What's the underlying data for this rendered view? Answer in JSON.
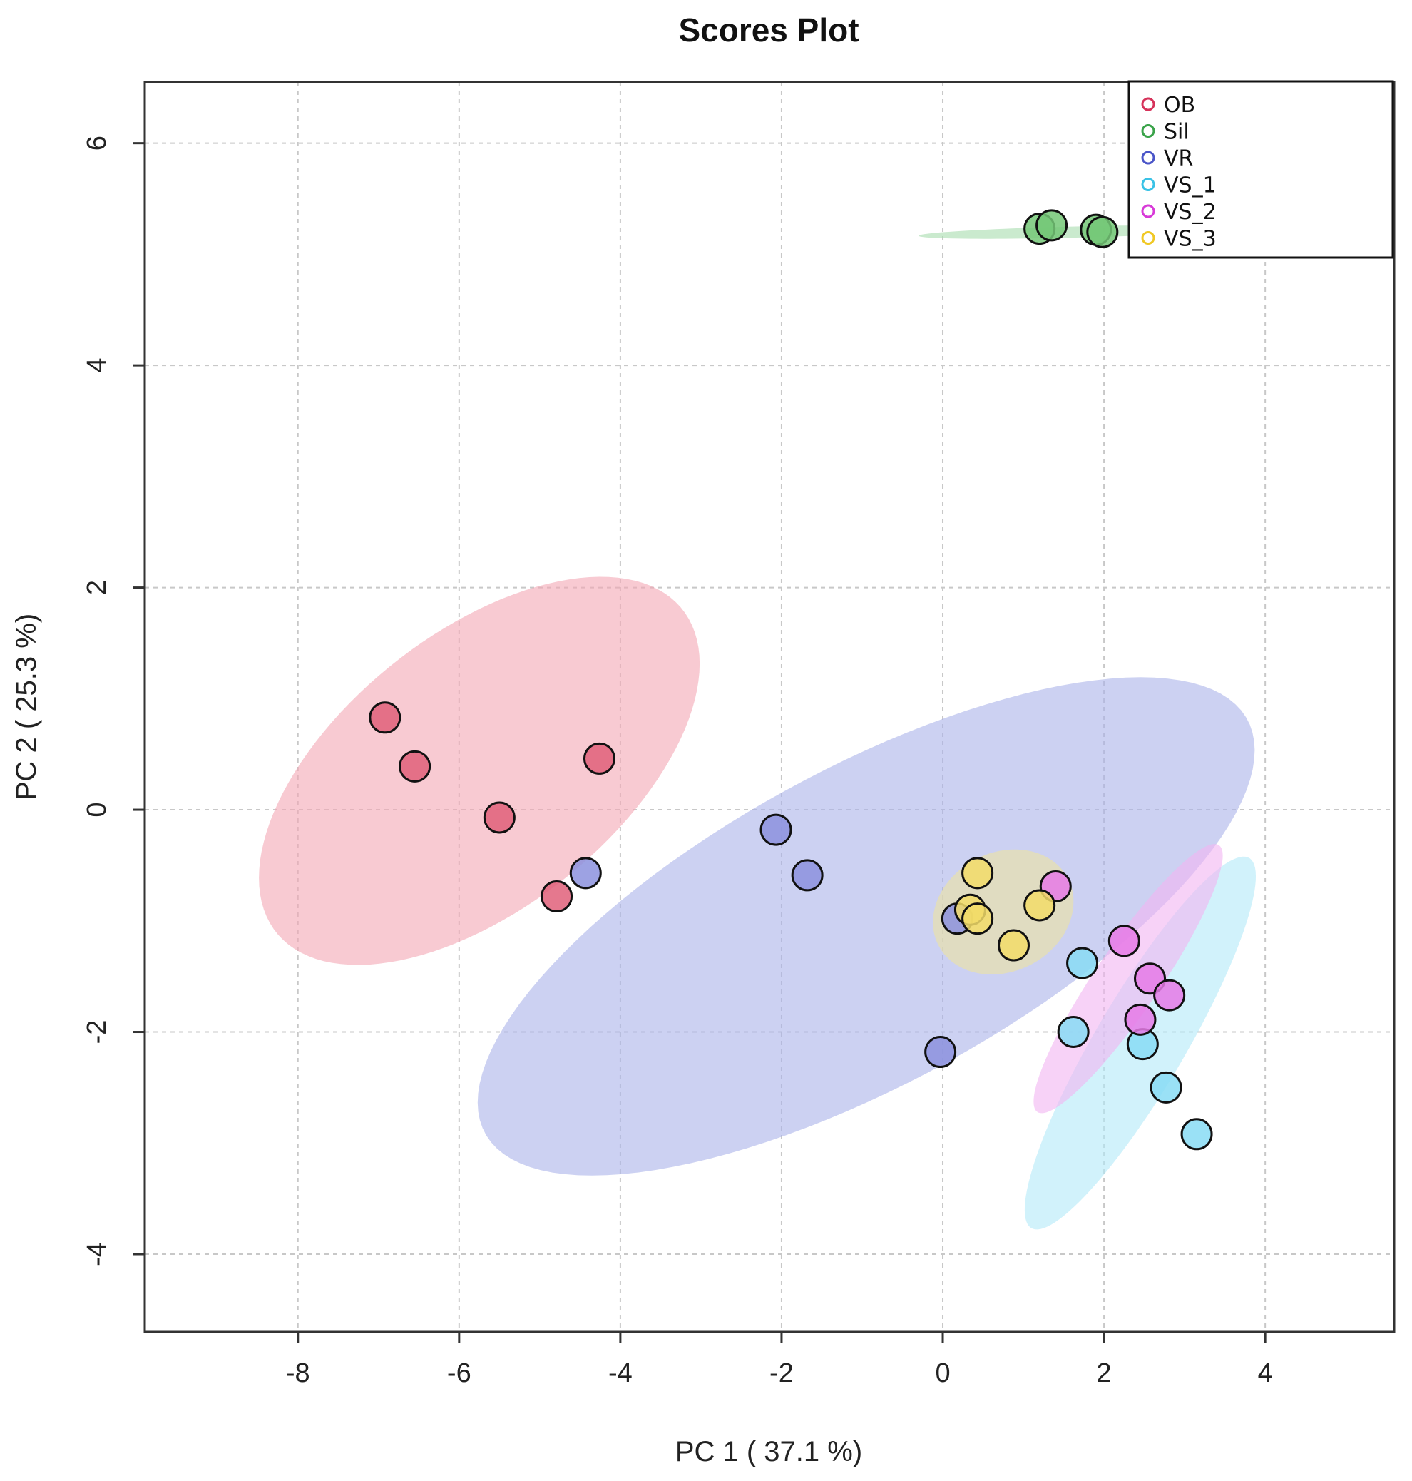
{
  "chart_data": {
    "type": "scatter",
    "title": "Scores Plot",
    "xlabel": "PC 1 ( 37.1 %)",
    "ylabel": "PC 2 ( 25.3 %)",
    "xlim": [
      -9.9,
      5.6
    ],
    "ylim": [
      -4.7,
      6.55
    ],
    "xticks": [
      -8,
      -6,
      -4,
      -2,
      0,
      2,
      4
    ],
    "yticks": [
      -4,
      -2,
      0,
      2,
      4,
      6
    ],
    "grid": true,
    "legend_position": "top-right",
    "series": [
      {
        "name": "OB",
        "legend_color": "#d6325a",
        "fill": "#e0607a",
        "ellipse_fill": "#f4a6b4",
        "ellipse": {
          "cx": -5.75,
          "cy": 0.35,
          "rx": 2.95,
          "ry": 1.35,
          "angle": 25
        },
        "points": [
          [
            -6.92,
            0.83
          ],
          [
            -6.55,
            0.39
          ],
          [
            -5.5,
            -0.07
          ],
          [
            -4.79,
            -0.78
          ],
          [
            -4.26,
            0.46
          ]
        ]
      },
      {
        "name": "Sil",
        "legend_color": "#3aa34a",
        "fill": "#74c877",
        "ellipse_fill": "#a6dcae",
        "ellipse": {
          "cx": 1.65,
          "cy": 5.2,
          "rx": 1.95,
          "ry": 0.05,
          "angle": 1
        },
        "points": [
          [
            1.2,
            5.23
          ],
          [
            1.35,
            5.26
          ],
          [
            1.9,
            5.22
          ],
          [
            1.98,
            5.2
          ]
        ]
      },
      {
        "name": "VR",
        "legend_color": "#4a55c8",
        "fill": "#8c92de",
        "ellipse_fill": "#aab2ea",
        "ellipse": {
          "cx": -0.95,
          "cy": -1.05,
          "rx": 5.1,
          "ry": 1.5,
          "angle": 20
        },
        "points": [
          [
            -4.43,
            -0.57
          ],
          [
            -2.07,
            -0.18
          ],
          [
            -1.68,
            -0.59
          ],
          [
            -0.03,
            -2.18
          ],
          [
            0.18,
            -0.98
          ]
        ]
      },
      {
        "name": "VS_1",
        "legend_color": "#3ac2e6",
        "fill": "#88dcf4",
        "ellipse_fill": "#b2eaf8",
        "ellipse": {
          "cx": 2.45,
          "cy": -2.1,
          "rx": 2.15,
          "ry": 0.5,
          "angle": 50
        },
        "points": [
          [
            1.62,
            -2.0
          ],
          [
            1.73,
            -1.38
          ],
          [
            2.48,
            -2.11
          ],
          [
            2.77,
            -2.5
          ],
          [
            3.15,
            -2.92
          ]
        ]
      },
      {
        "name": "VS_2",
        "legend_color": "#d83ad8",
        "fill": "#e67ae6",
        "ellipse_fill": "#f2b4f2",
        "ellipse": {
          "cx": 2.3,
          "cy": -1.52,
          "rx": 1.65,
          "ry": 0.35,
          "angle": 46
        },
        "points": [
          [
            1.4,
            -0.69
          ],
          [
            2.25,
            -1.18
          ],
          [
            2.57,
            -1.52
          ],
          [
            2.81,
            -1.67
          ],
          [
            2.45,
            -1.89
          ]
        ]
      },
      {
        "name": "VS_3",
        "legend_color": "#f0c824",
        "fill": "#f2dc68",
        "ellipse_fill": "#ece2a0",
        "ellipse": {
          "cx": 0.75,
          "cy": -0.92,
          "rx": 0.88,
          "ry": 0.55,
          "angle": 10
        },
        "points": [
          [
            0.43,
            -0.57
          ],
          [
            0.34,
            -0.9
          ],
          [
            0.43,
            -0.98
          ],
          [
            0.88,
            -1.22
          ],
          [
            1.2,
            -0.86
          ]
        ]
      }
    ]
  }
}
